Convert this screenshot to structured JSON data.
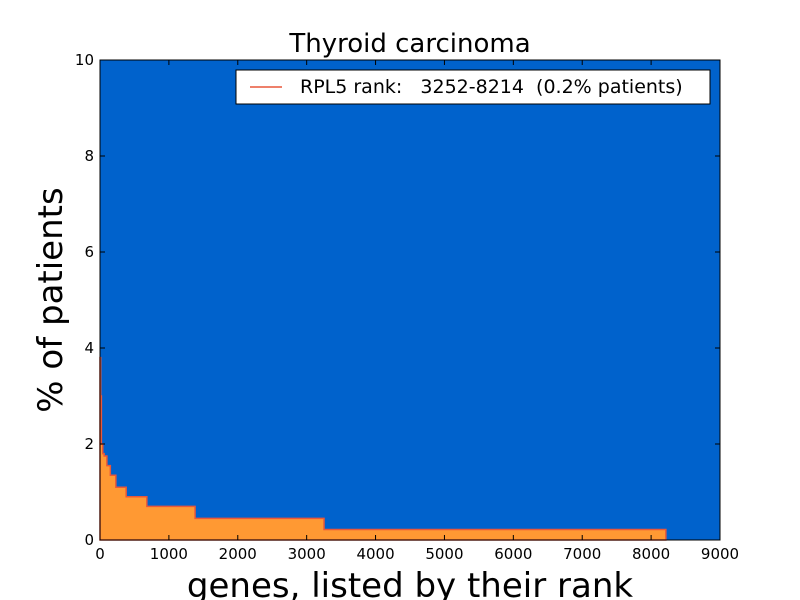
{
  "chart_data": {
    "type": "area",
    "title": "Thyroid carcinoma",
    "xlabel": "genes, listed by their rank",
    "ylabel": "% of patients",
    "xlim": [
      0,
      9000
    ],
    "ylim": [
      0,
      10
    ],
    "xticks": [
      0,
      1000,
      2000,
      3000,
      4000,
      5000,
      6000,
      7000,
      8000,
      9000
    ],
    "yticks": [
      0,
      2,
      4,
      6,
      8,
      10
    ],
    "background_color": "#0062CC",
    "fill_color": "#FF9933",
    "edge_color": "#E8573A",
    "legend": {
      "label": "RPL5 rank:   3252-8214  (0.2% patients)",
      "placement": "top-right",
      "line_color": "#E8573A"
    },
    "series": [
      {
        "step": "post",
        "x": [
          0,
          10,
          20,
          40,
          60,
          100,
          150,
          230,
          380,
          680,
          1380,
          3252,
          8214
        ],
        "y": [
          3.8,
          3.0,
          2.0,
          1.8,
          1.75,
          1.55,
          1.35,
          1.1,
          0.9,
          0.7,
          0.45,
          0.22,
          0.22
        ]
      }
    ]
  }
}
